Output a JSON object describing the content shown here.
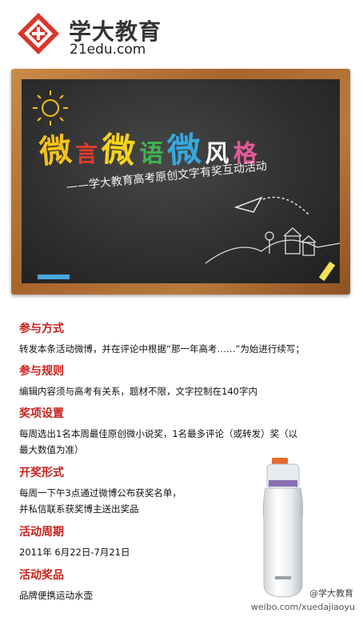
{
  "logo": {
    "name_cn": "学大教育",
    "name_en": "21edu.com",
    "mark_color": "#d9372b"
  },
  "board": {
    "title_chars": [
      {
        "char": "微",
        "color": "#f4c21b"
      },
      {
        "char": "言",
        "color": "#e53b2a"
      },
      {
        "char": "微",
        "color": "#f5d31e"
      },
      {
        "char": "语",
        "color": "#3fb34f"
      },
      {
        "char": "微",
        "color": "#35a8e0"
      },
      {
        "char": "风",
        "color": "#ffffff"
      },
      {
        "char": "格",
        "color": "#e8589a"
      }
    ],
    "subtitle": "——学大教育高考原创文字有奖互动活动"
  },
  "sections": [
    {
      "title": "参与方式",
      "lines": [
        "转发本条活动微博，并在评论中根据“那一年高考……”为始进行续写；"
      ]
    },
    {
      "title": "参与规则",
      "lines": [
        "编辑内容须与高考有关系，题材不限，文字控制在140字内"
      ]
    },
    {
      "title": "奖项设置",
      "lines": [
        "每周选出1名本周最佳原创微小说奖，1名最多评论（或转发）奖（以",
        "最大数值为准）"
      ]
    },
    {
      "title": "开奖形式",
      "lines": [
        "每周一下午3点通过微博公布获奖名单，",
        "并私信联系获奖博主送出奖品"
      ]
    },
    {
      "title": "活动周期",
      "lines": [
        "2011年 6月22日-7月21日"
      ]
    },
    {
      "title": "活动奖品",
      "lines": [
        "品牌便携运动水壶"
      ]
    }
  ],
  "watermark": {
    "handle": "@学大教育",
    "url": "weibo.com/xuedajiaoyu"
  }
}
